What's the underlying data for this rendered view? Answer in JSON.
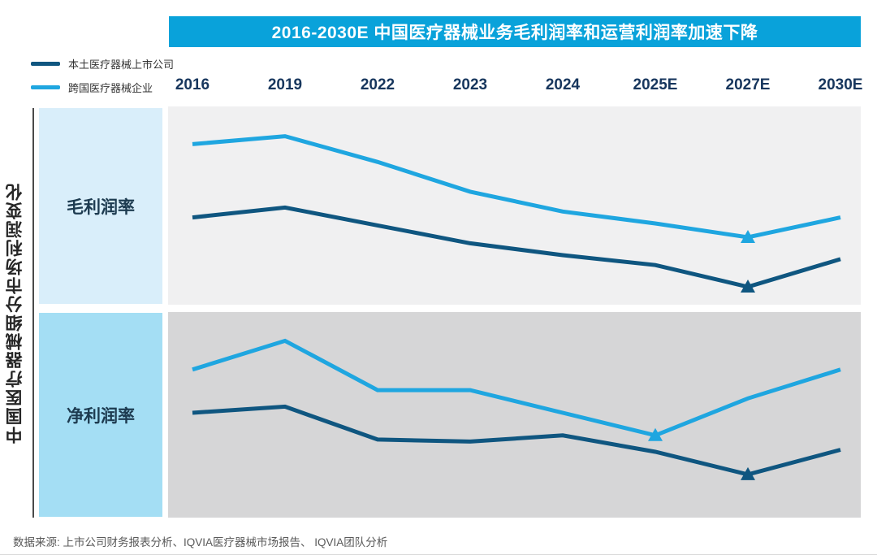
{
  "title": "2016-2030E 中国医疗器械业务毛利润率和运营利润率加速下降",
  "axis_label": "中国医疗器械细分市场利润变化",
  "source": "数据来源: 上市公司财务报表分析、IQVIA医疗器械市场报告、 IQVIA团队分析",
  "legend": {
    "items": [
      {
        "label": "本土医疗器械上市公司",
        "color": "#0f5680"
      },
      {
        "label": "跨国医疗器械企业",
        "color": "#1fa6e0"
      }
    ]
  },
  "colors": {
    "title_bg": "#09a2da",
    "title_text": "#ffffff",
    "domestic_line": "#0f5680",
    "multinational_line": "#1fa6e0",
    "year_label": "#17365d",
    "gross_panel_bg": "#f0f0f1",
    "net_panel_bg": "#d6d6d7",
    "gross_box_bg": "#d9eefa",
    "net_box_bg": "#a4def4",
    "source_text": "#595959"
  },
  "chart_data": [
    {
      "type": "line",
      "title": "毛利润率",
      "categories": [
        "2016",
        "2019",
        "2022",
        "2023",
        "2024",
        "2025E",
        "2027E",
        "2030E"
      ],
      "series": [
        {
          "name": "跨国医疗器械企业",
          "color": "#1fa6e0",
          "values": [
            81,
            85,
            72,
            57,
            47,
            41,
            34,
            44
          ],
          "marker_at": "2027E"
        },
        {
          "name": "本土医疗器械上市公司",
          "color": "#0f5680",
          "values": [
            44,
            49,
            40,
            31,
            25,
            20,
            9,
            23
          ],
          "marker_at": "2027E"
        }
      ],
      "ylim": [
        0,
        100
      ],
      "ylabel": "",
      "xlabel": "",
      "grid": false,
      "note": "no y-axis shown in source; values are relative levels in % of panel height, trend: decline from 2019 peak, trough at 2027E, recovery to 2030E"
    },
    {
      "type": "line",
      "title": "净利润率",
      "categories": [
        "2016",
        "2019",
        "2022",
        "2023",
        "2024",
        "2025E",
        "2027E",
        "2030E"
      ],
      "series": [
        {
          "name": "跨国医疗器械企业",
          "color": "#1fa6e0",
          "values": [
            72,
            86,
            62,
            62,
            51,
            40,
            58,
            72
          ],
          "marker_at": "2025E"
        },
        {
          "name": "本土医疗器械上市公司",
          "color": "#0f5680",
          "values": [
            51,
            54,
            38,
            37,
            40,
            32,
            21,
            33
          ],
          "marker_at": "2027E"
        }
      ],
      "ylim": [
        0,
        100
      ],
      "ylabel": "",
      "xlabel": "",
      "grid": false,
      "note": "no y-axis shown in source; multinational trough at 2025E, domestic trough at 2027E"
    }
  ]
}
